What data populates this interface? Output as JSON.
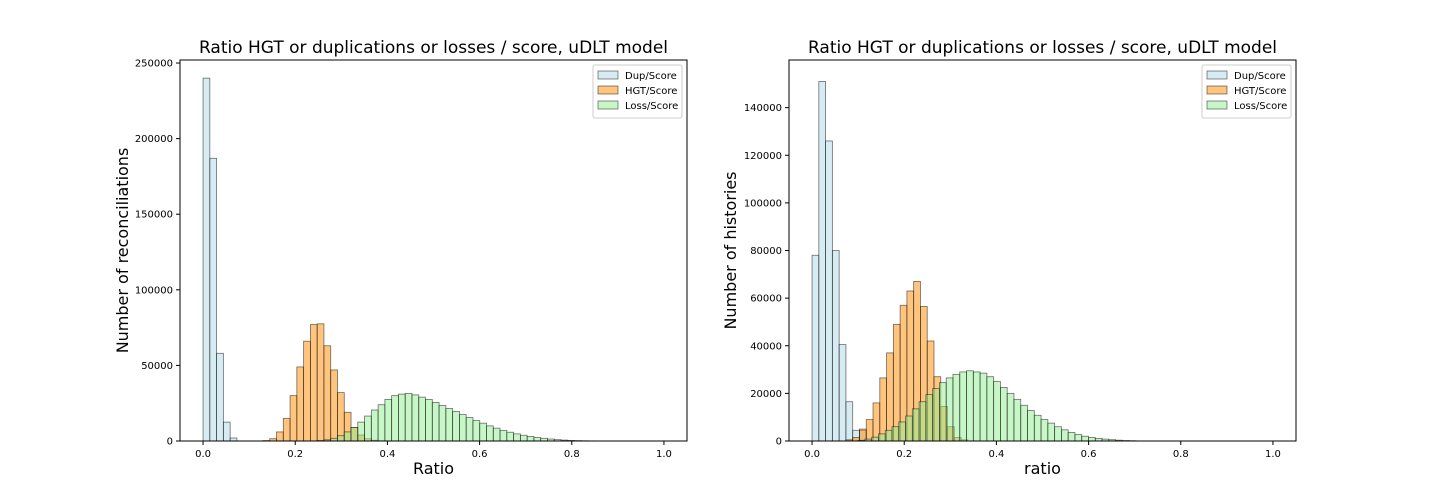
{
  "chart_data": [
    {
      "type": "histogram",
      "title": "Ratio HGT or duplications or losses / score, uDLT model",
      "xlabel": "Ratio",
      "ylabel": "Number of reconciliations",
      "xlim": [
        -0.05,
        1.05
      ],
      "ylim": [
        0,
        252000
      ],
      "xticks": [
        "0.0",
        "0.2",
        "0.4",
        "0.6",
        "0.8",
        "1.0"
      ],
      "yticks": [
        "0",
        "50000",
        "100000",
        "150000",
        "200000",
        "250000"
      ],
      "legend_position": "top-right",
      "series": [
        {
          "name": "Dup/Score",
          "color": "#add8e6",
          "bin_start": 0.0,
          "bin_width": 0.0147,
          "values": [
            240000,
            187000,
            58000,
            12500,
            2000
          ]
        },
        {
          "name": "HGT/Score",
          "color": "#ff8c00",
          "bin_start": 0.13,
          "bin_width": 0.0147,
          "values": [
            300,
            1500,
            6000,
            15000,
            30000,
            49000,
            66000,
            77000,
            77500,
            63000,
            47000,
            32000,
            19000,
            9000,
            4000,
            1500,
            500,
            150,
            50
          ]
        },
        {
          "name": "Loss/Score",
          "color": "#90ee90",
          "bin_start": 0.2475,
          "bin_width": 0.0147,
          "values": [
            300,
            800,
            1800,
            3500,
            6000,
            9000,
            12500,
            16500,
            20500,
            24000,
            27500,
            30000,
            31000,
            31500,
            30500,
            29000,
            27500,
            25500,
            23500,
            21500,
            19500,
            17500,
            15500,
            13500,
            11800,
            10000,
            8500,
            7000,
            5800,
            4700,
            3800,
            3000,
            2300,
            1800,
            1300,
            900,
            600,
            400,
            250,
            150,
            80
          ]
        }
      ]
    },
    {
      "type": "histogram",
      "title": "Ratio HGT or duplications or losses / score, uDLT model",
      "xlabel": "ratio",
      "ylabel": "Number of histories",
      "xlim": [
        -0.05,
        1.05
      ],
      "ylim": [
        0,
        160000
      ],
      "xticks": [
        "0.0",
        "0.2",
        "0.4",
        "0.6",
        "0.8",
        "1.0"
      ],
      "yticks": [
        "0",
        "20000",
        "40000",
        "60000",
        "80000",
        "100000",
        "120000",
        "140000"
      ],
      "legend_position": "top-right",
      "series": [
        {
          "name": "Dup/Score",
          "color": "#add8e6",
          "bin_start": 0.0,
          "bin_width": 0.0147,
          "values": [
            78000,
            151000,
            126000,
            80000,
            40500,
            16500,
            4500,
            4500
          ]
        },
        {
          "name": "HGT/Score",
          "color": "#ff8c00",
          "bin_start": 0.0735,
          "bin_width": 0.0147,
          "values": [
            500,
            1500,
            5000,
            9000,
            16000,
            26500,
            37000,
            49000,
            57000,
            63000,
            67000,
            56500,
            42000,
            27000,
            14500,
            6000,
            1500,
            500
          ]
        },
        {
          "name": "Loss/Score",
          "color": "#90ee90",
          "bin_start": 0.1,
          "bin_width": 0.0147,
          "values": [
            300,
            800,
            1600,
            3000,
            4500,
            6000,
            8000,
            10500,
            13500,
            16500,
            19500,
            22000,
            24500,
            26500,
            28000,
            29000,
            29500,
            29000,
            28500,
            27000,
            25000,
            22500,
            20000,
            17500,
            15000,
            12800,
            10800,
            9000,
            7500,
            6000,
            4700,
            3600,
            2700,
            2000,
            1500,
            1100,
            800,
            550,
            350,
            200,
            120
          ]
        }
      ]
    }
  ]
}
